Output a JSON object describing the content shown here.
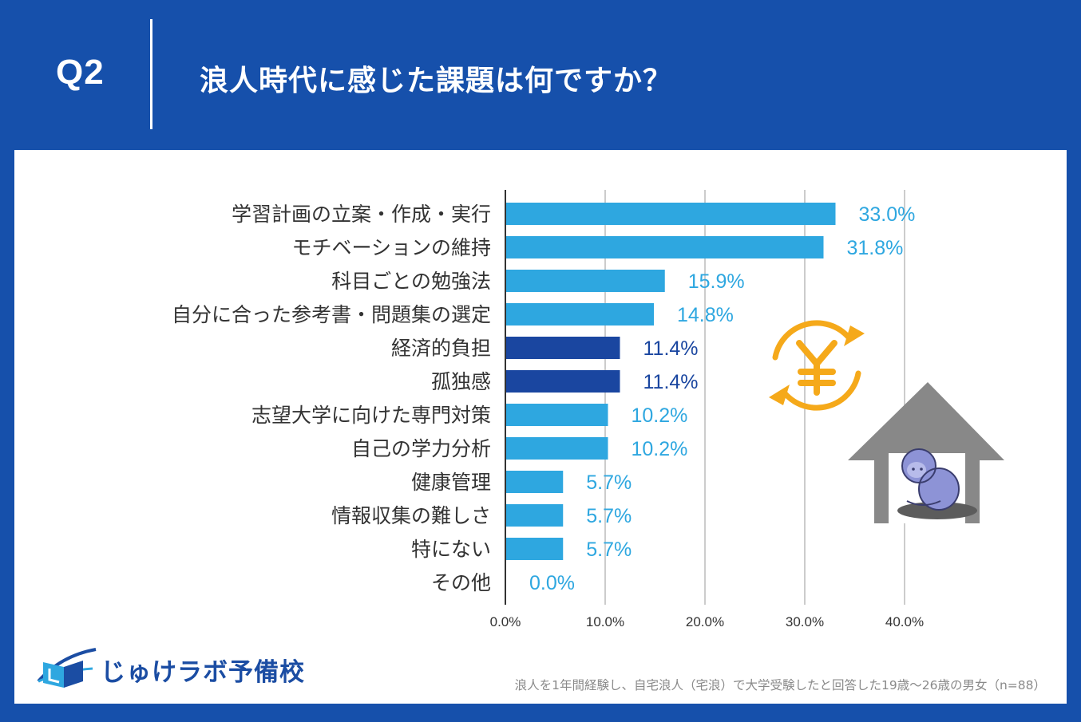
{
  "header": {
    "q_label": "Q2",
    "title": "浪人時代に感じた課題は何ですか？"
  },
  "colors": {
    "background": "#1650ab",
    "bar_light": "#2ea7e0",
    "bar_dark": "#1a46a0",
    "value_light": "#2ea7e0",
    "value_dark": "#1a46a0",
    "coin": "#f5a91a",
    "house": "#888888"
  },
  "chart_data": {
    "type": "bar",
    "orientation": "horizontal",
    "categories": [
      "学習計画の立案・作成・実行",
      "モチベーションの維持",
      "科目ごとの勉強法",
      "自分に合った参考書・問題集の選定",
      "経済的負担",
      "孤独感",
      "志望大学に向けた専門対策",
      "自己の学力分析",
      "健康管理",
      "情報収集の難しさ",
      "特にない",
      "その他"
    ],
    "values": [
      33.0,
      31.8,
      15.9,
      14.8,
      11.4,
      11.4,
      10.2,
      10.2,
      5.7,
      5.7,
      5.7,
      0.0
    ],
    "value_labels": [
      "33.0%",
      "31.8%",
      "15.9%",
      "14.8%",
      "11.4%",
      "11.4%",
      "10.2%",
      "10.2%",
      "5.7%",
      "5.7%",
      "5.7%",
      "0.0%"
    ],
    "highlighted": [
      false,
      false,
      false,
      false,
      true,
      true,
      false,
      false,
      false,
      false,
      false,
      false
    ],
    "xlim": [
      0,
      40
    ],
    "xticks": [
      0,
      10,
      20,
      30,
      40
    ],
    "xtick_labels": [
      "0.0%",
      "10.0%",
      "20.0%",
      "30.0%",
      "40.0%"
    ],
    "grid": true,
    "title": "",
    "xlabel": "",
    "ylabel": ""
  },
  "icons": [
    "yen-exchange-icon",
    "house-icon",
    "sad-person-icon",
    "book-logo-icon"
  ],
  "logo": {
    "text": "じゅけラボ予備校"
  },
  "footnote": "浪人を1年間経験し、自宅浪人（宅浪）で大学受験したと回答した19歳～26歳の男女（n=88）"
}
